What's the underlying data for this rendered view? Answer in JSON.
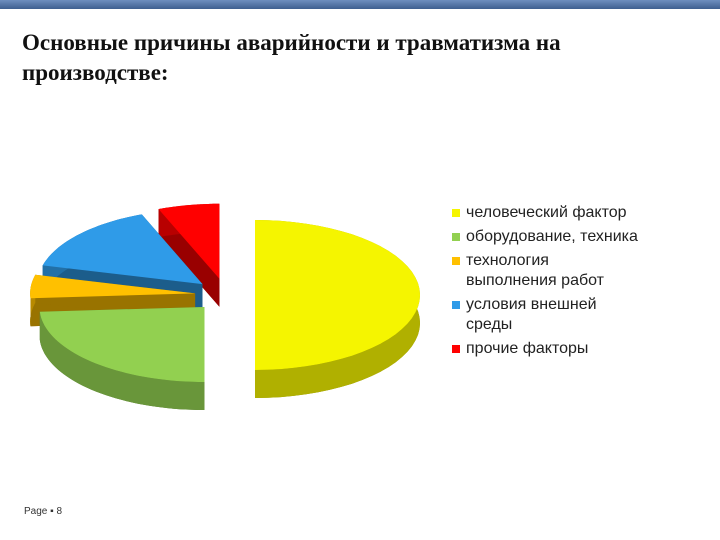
{
  "chart_data": {
    "type": "pie",
    "title": "Основные причины аварийности и травматизма на производстве:",
    "categories": [
      "человеческий фактор",
      "оборудование, техника",
      "технология выполнения работ",
      "условия внешней среды",
      "прочие факторы"
    ],
    "values": [
      50,
      24,
      5,
      15,
      6
    ],
    "colors": [
      "#f5f500",
      "#92d050",
      "#ffc000",
      "#2f9be8",
      "#ff0000"
    ],
    "legend": "right"
  },
  "footer": "Page ▪ 8"
}
